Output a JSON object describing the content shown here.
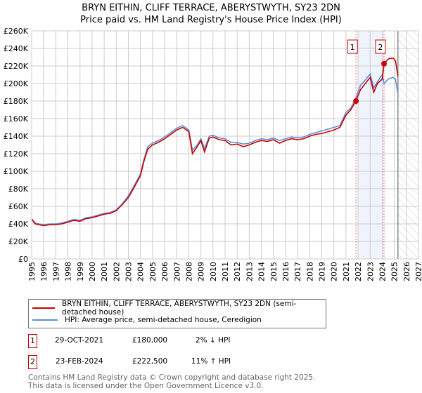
{
  "chart_data": {
    "type": "line",
    "title": "BRYN EITHIN, CLIFF TERRACE, ABERYSTWYTH, SY23 2DN",
    "subtitle": "Price paid vs. HM Land Registry's House Price Index (HPI)",
    "xlim": [
      1995,
      2027
    ],
    "ylim": [
      0,
      260000
    ],
    "x_ticks": [
      "1995",
      "1996",
      "1997",
      "1998",
      "1999",
      "2000",
      "2001",
      "2002",
      "2003",
      "2004",
      "2005",
      "2006",
      "2007",
      "2008",
      "2009",
      "2010",
      "2011",
      "2012",
      "2013",
      "2014",
      "2015",
      "2016",
      "2017",
      "2018",
      "2019",
      "2020",
      "2021",
      "2022",
      "2023",
      "2024",
      "2025",
      "2026",
      "2027"
    ],
    "y_ticks": [
      {
        "v": 0,
        "l": "£0"
      },
      {
        "v": 20000,
        "l": "£20K"
      },
      {
        "v": 40000,
        "l": "£40K"
      },
      {
        "v": 60000,
        "l": "£60K"
      },
      {
        "v": 80000,
        "l": "£80K"
      },
      {
        "v": 100000,
        "l": "£100K"
      },
      {
        "v": 120000,
        "l": "£120K"
      },
      {
        "v": 140000,
        "l": "£140K"
      },
      {
        "v": 160000,
        "l": "£160K"
      },
      {
        "v": 180000,
        "l": "£180K"
      },
      {
        "v": 200000,
        "l": "£200K"
      },
      {
        "v": 220000,
        "l": "£220K"
      },
      {
        "v": 240000,
        "l": "£240K"
      },
      {
        "v": 260000,
        "l": "£260K"
      }
    ],
    "shaded_range": [
      2022.0,
      2024.15
    ],
    "forecast_from": 2025.3,
    "series": [
      {
        "name": "BRYN EITHIN, CLIFF TERRACE, ABERYSTWYTH, SY23 2DN (semi-detached house)",
        "color": "#cc0000",
        "x": [
          1995,
          1995.3,
          1995.6,
          1996,
          1996.5,
          1997,
          1997.5,
          1998,
          1998.5,
          1999,
          1999.5,
          2000,
          2000.5,
          2001,
          2001.5,
          2002,
          2002.5,
          2003,
          2003.5,
          2004,
          2004.3,
          2004.6,
          2005,
          2005.5,
          2006,
          2006.5,
          2007,
          2007.5,
          2008,
          2008.3,
          2008.7,
          2009,
          2009.3,
          2009.7,
          2010,
          2010.5,
          2011,
          2011.5,
          2012,
          2012.5,
          2013,
          2013.5,
          2014,
          2014.5,
          2015,
          2015.5,
          2016,
          2016.5,
          2017,
          2017.5,
          2018,
          2018.5,
          2019,
          2019.5,
          2020,
          2020.5,
          2021,
          2021.4,
          2021.83,
          2022.2,
          2022.6,
          2023,
          2023.3,
          2023.6,
          2024,
          2024.15,
          2024.5,
          2024.9,
          2025.1,
          2025.3
        ],
        "y": [
          45000,
          40000,
          39000,
          38000,
          39000,
          39000,
          40000,
          42000,
          44000,
          43000,
          46000,
          47000,
          49000,
          51000,
          52000,
          55000,
          62000,
          70000,
          82000,
          95000,
          112000,
          125000,
          130000,
          133000,
          137000,
          142000,
          147000,
          150000,
          145000,
          120000,
          128000,
          135000,
          122000,
          138000,
          139000,
          136000,
          135000,
          130000,
          131000,
          128000,
          130000,
          133000,
          135000,
          134000,
          136000,
          132000,
          135000,
          137000,
          136000,
          137000,
          140000,
          142000,
          143000,
          145000,
          147000,
          150000,
          164000,
          170000,
          180000,
          193000,
          200000,
          207000,
          190000,
          200000,
          205000,
          222500,
          228000,
          229000,
          226000,
          208000
        ]
      },
      {
        "name": "HPI: Average price, semi-detached house, Ceredigion",
        "color": "#5b8fd6",
        "x": [
          1995,
          1995.3,
          1995.6,
          1996,
          1996.5,
          1997,
          1997.5,
          1998,
          1998.5,
          1999,
          1999.5,
          2000,
          2000.5,
          2001,
          2001.5,
          2002,
          2002.5,
          2003,
          2003.5,
          2004,
          2004.3,
          2004.6,
          2005,
          2005.5,
          2006,
          2006.5,
          2007,
          2007.5,
          2008,
          2008.3,
          2008.7,
          2009,
          2009.3,
          2009.7,
          2010,
          2010.5,
          2011,
          2011.5,
          2012,
          2012.5,
          2013,
          2013.5,
          2014,
          2014.5,
          2015,
          2015.5,
          2016,
          2016.5,
          2017,
          2017.5,
          2018,
          2018.5,
          2019,
          2019.5,
          2020,
          2020.5,
          2021,
          2021.4,
          2021.83,
          2022.2,
          2022.6,
          2023,
          2023.3,
          2023.6,
          2024,
          2024.15,
          2024.5,
          2024.9,
          2025.1,
          2025.3
        ],
        "y": [
          46000,
          41000,
          40000,
          39000,
          40000,
          40000,
          41000,
          43000,
          45000,
          44000,
          47000,
          48000,
          50000,
          52000,
          53000,
          56000,
          63000,
          72000,
          84000,
          97000,
          114000,
          128000,
          132000,
          135000,
          139000,
          144000,
          149000,
          152000,
          147000,
          124000,
          130000,
          137000,
          126000,
          140000,
          141000,
          138000,
          137000,
          133000,
          133000,
          131000,
          132000,
          135000,
          137000,
          136000,
          138000,
          135000,
          137000,
          139000,
          138000,
          139000,
          142000,
          144000,
          146000,
          148000,
          150000,
          152000,
          167000,
          172000,
          184000,
          198000,
          204000,
          211000,
          195000,
          202000,
          210000,
          200000,
          205000,
          207000,
          205000,
          188000
        ]
      }
    ],
    "sales": [
      {
        "label": "1",
        "x": 2021.83,
        "y": 180000
      },
      {
        "label": "2",
        "x": 2024.15,
        "y": 222500
      }
    ]
  },
  "legend": {
    "red": "BRYN EITHIN, CLIFF TERRACE, ABERYSTWYTH, SY23 2DN (semi-detached house)",
    "blue": "HPI: Average price, semi-detached house, Ceredigion"
  },
  "transactions": [
    {
      "num": "1",
      "date": "29-OCT-2021",
      "price": "£180,000",
      "hpi": "2% ↓ HPI"
    },
    {
      "num": "2",
      "date": "23-FEB-2024",
      "price": "£222,500",
      "hpi": "11% ↑ HPI"
    }
  ],
  "footer": {
    "line1": "Contains HM Land Registry data © Crown copyright and database right 2025.",
    "line2": "This data is licensed under the Open Government Licence v3.0."
  }
}
